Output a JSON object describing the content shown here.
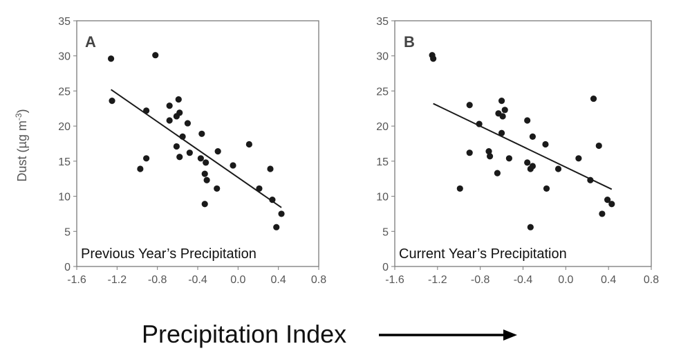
{
  "chart_data": [
    {
      "type": "scatter",
      "panel_label": "A",
      "annotation": "Previous Year’s Precipitation",
      "ylabel_main": "Dust (µg m",
      "ylabel_sup": "-3",
      "ylabel_end": ")",
      "xlim": [
        -1.6,
        0.8
      ],
      "ylim": [
        0,
        35
      ],
      "xticks": [
        "-1.6",
        "-1.2",
        "-0.8",
        "-0.4",
        "0.0",
        "0.4",
        "0.8"
      ],
      "yticks": [
        "0",
        "5",
        "10",
        "15",
        "20",
        "25",
        "30",
        "35"
      ],
      "grid": false,
      "points": [
        {
          "x": -1.26,
          "y": 29.6
        },
        {
          "x": -1.25,
          "y": 23.6
        },
        {
          "x": -0.82,
          "y": 30.1
        },
        {
          "x": -0.91,
          "y": 22.2
        },
        {
          "x": -0.97,
          "y": 13.9
        },
        {
          "x": -0.91,
          "y": 15.4
        },
        {
          "x": -0.68,
          "y": 22.9
        },
        {
          "x": -0.68,
          "y": 20.8
        },
        {
          "x": -0.61,
          "y": 21.4
        },
        {
          "x": -0.59,
          "y": 23.8
        },
        {
          "x": -0.58,
          "y": 21.9
        },
        {
          "x": -0.55,
          "y": 18.5
        },
        {
          "x": -0.5,
          "y": 20.4
        },
        {
          "x": -0.61,
          "y": 17.1
        },
        {
          "x": -0.58,
          "y": 15.6
        },
        {
          "x": -0.48,
          "y": 16.2
        },
        {
          "x": -0.36,
          "y": 18.9
        },
        {
          "x": -0.37,
          "y": 15.4
        },
        {
          "x": -0.32,
          "y": 14.8
        },
        {
          "x": -0.33,
          "y": 13.2
        },
        {
          "x": -0.31,
          "y": 12.3
        },
        {
          "x": -0.33,
          "y": 8.9
        },
        {
          "x": -0.21,
          "y": 11.1
        },
        {
          "x": -0.2,
          "y": 16.4
        },
        {
          "x": -0.05,
          "y": 14.4
        },
        {
          "x": 0.11,
          "y": 17.4
        },
        {
          "x": 0.21,
          "y": 11.1
        },
        {
          "x": 0.32,
          "y": 13.9
        },
        {
          "x": 0.34,
          "y": 9.5
        },
        {
          "x": 0.38,
          "y": 5.6
        },
        {
          "x": 0.43,
          "y": 7.5
        }
      ],
      "trendline": [
        {
          "x": -1.26,
          "y": 25.2
        },
        {
          "x": 0.43,
          "y": 8.4
        }
      ]
    },
    {
      "type": "scatter",
      "panel_label": "B",
      "annotation": "Current Year’s Precipitation",
      "xlim": [
        -1.6,
        0.8
      ],
      "ylim": [
        0,
        35
      ],
      "xticks": [
        "-1.6",
        "-1.2",
        "-0.8",
        "-0.4",
        "0.0",
        "0.4",
        "0.8"
      ],
      "yticks": [
        "0",
        "5",
        "10",
        "15",
        "20",
        "25",
        "30",
        "35"
      ],
      "grid": false,
      "points": [
        {
          "x": -1.25,
          "y": 30.1
        },
        {
          "x": -1.24,
          "y": 29.6
        },
        {
          "x": -0.9,
          "y": 23.0
        },
        {
          "x": -0.81,
          "y": 20.3
        },
        {
          "x": -0.9,
          "y": 16.2
        },
        {
          "x": -0.99,
          "y": 11.1
        },
        {
          "x": -0.72,
          "y": 16.4
        },
        {
          "x": -0.71,
          "y": 15.7
        },
        {
          "x": -0.64,
          "y": 13.3
        },
        {
          "x": -0.63,
          "y": 21.8
        },
        {
          "x": -0.6,
          "y": 23.6
        },
        {
          "x": -0.59,
          "y": 21.4
        },
        {
          "x": -0.57,
          "y": 22.3
        },
        {
          "x": -0.6,
          "y": 19.0
        },
        {
          "x": -0.53,
          "y": 15.4
        },
        {
          "x": -0.36,
          "y": 20.8
        },
        {
          "x": -0.31,
          "y": 18.5
        },
        {
          "x": -0.36,
          "y": 14.8
        },
        {
          "x": -0.33,
          "y": 13.9
        },
        {
          "x": -0.31,
          "y": 14.3
        },
        {
          "x": -0.33,
          "y": 5.6
        },
        {
          "x": -0.19,
          "y": 17.4
        },
        {
          "x": -0.18,
          "y": 11.1
        },
        {
          "x": -0.07,
          "y": 13.9
        },
        {
          "x": 0.12,
          "y": 15.4
        },
        {
          "x": 0.23,
          "y": 12.3
        },
        {
          "x": 0.26,
          "y": 23.9
        },
        {
          "x": 0.31,
          "y": 17.2
        },
        {
          "x": 0.34,
          "y": 7.5
        },
        {
          "x": 0.39,
          "y": 9.5
        },
        {
          "x": 0.43,
          "y": 8.9
        }
      ],
      "trendline": [
        {
          "x": -1.24,
          "y": 23.2
        },
        {
          "x": 0.43,
          "y": 11.0
        }
      ]
    }
  ],
  "xaxis_title": "Precipitation Index",
  "colors": {
    "point": "#1a1a1a",
    "axis": "#7a7a7a",
    "line": "#1a1a1a"
  },
  "icons": {
    "xaxis_arrow": "right-arrow-icon"
  }
}
